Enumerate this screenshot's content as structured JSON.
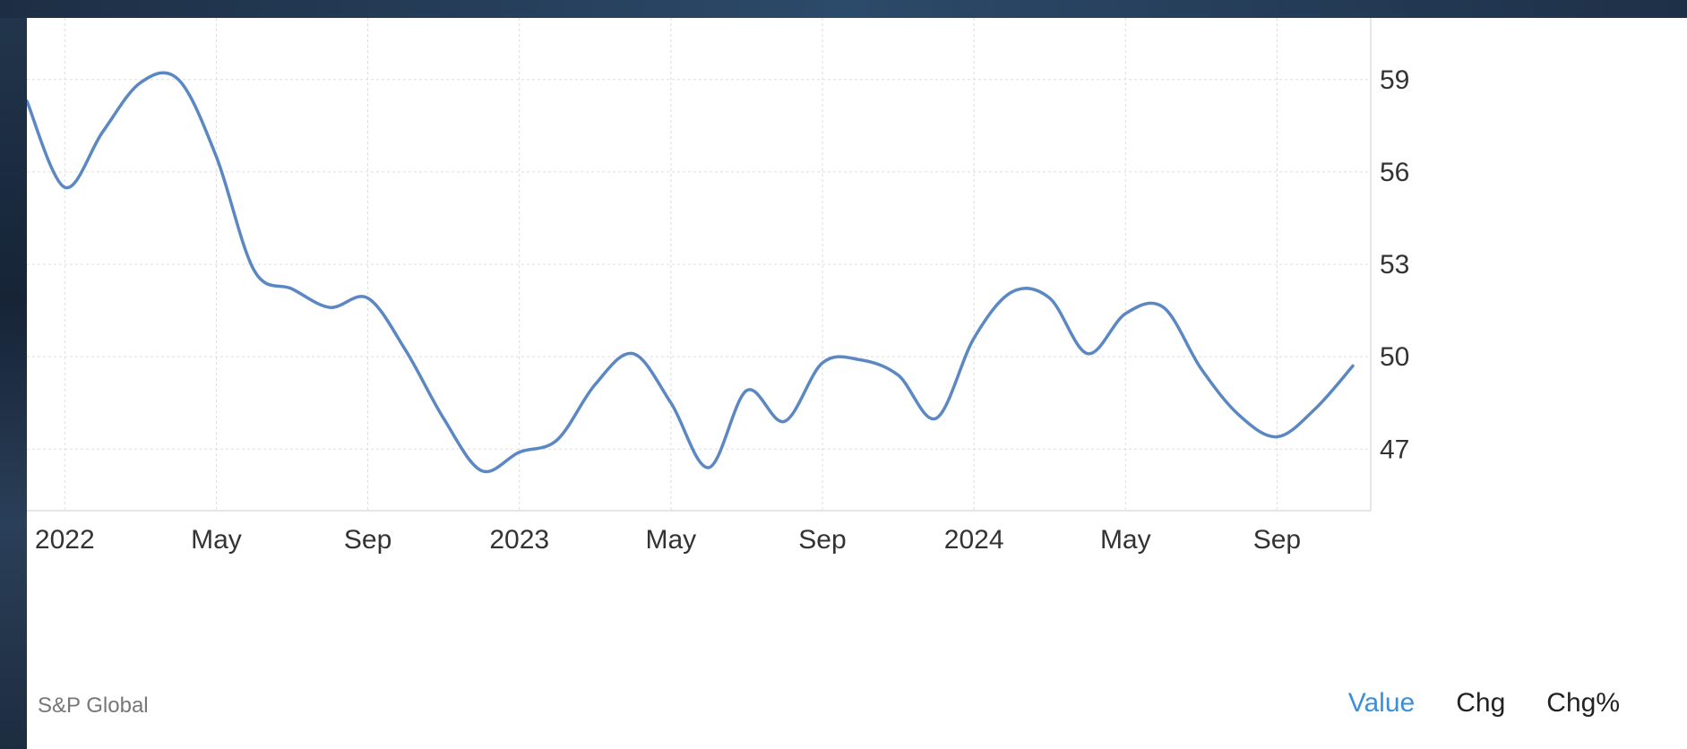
{
  "source_label": "S&P Global",
  "tabs": [
    {
      "label": "Value",
      "active": true
    },
    {
      "label": "Chg",
      "active": false
    },
    {
      "label": "Chg%",
      "active": false
    }
  ],
  "colors": {
    "line": "#5b87c3",
    "active_tab": "#3b8fd9",
    "grid": "#dddddd"
  },
  "chart_data": {
    "type": "line",
    "title": "",
    "xlabel": "",
    "ylabel": "",
    "x_tick_labels": [
      "2022",
      "May",
      "Sep",
      "2023",
      "May",
      "Sep",
      "2024",
      "May",
      "Sep"
    ],
    "y_tick_labels": [
      "59",
      "56",
      "53",
      "50",
      "47"
    ],
    "y_ticks": [
      59,
      56,
      53,
      50,
      47
    ],
    "ylim": [
      45.0,
      61.0
    ],
    "grid": true,
    "legend": "none",
    "series": [
      {
        "x": [
          "2021-12",
          "2022-01",
          "2022-02",
          "2022-03",
          "2022-04",
          "2022-05",
          "2022-06",
          "2022-07",
          "2022-08",
          "2022-09",
          "2022-10",
          "2022-11",
          "2022-12",
          "2023-01",
          "2023-02",
          "2023-03",
          "2023-04",
          "2023-05",
          "2023-06",
          "2023-07",
          "2023-08",
          "2023-09",
          "2023-10",
          "2023-11",
          "2023-12",
          "2024-01",
          "2024-02",
          "2024-03",
          "2024-04",
          "2024-05",
          "2024-06",
          "2024-07",
          "2024-08",
          "2024-09",
          "2024-10",
          "2024-11"
        ],
        "values": [
          58.3,
          55.5,
          57.3,
          58.9,
          59.0,
          56.5,
          52.8,
          52.2,
          51.6,
          51.9,
          50.2,
          48.0,
          46.3,
          46.9,
          47.3,
          49.1,
          50.1,
          48.5,
          46.4,
          48.9,
          47.9,
          49.8,
          49.9,
          49.4,
          48.0,
          50.6,
          52.1,
          51.9,
          50.1,
          51.4,
          51.6,
          49.6,
          48.1,
          47.4,
          48.3,
          49.7
        ]
      }
    ]
  }
}
